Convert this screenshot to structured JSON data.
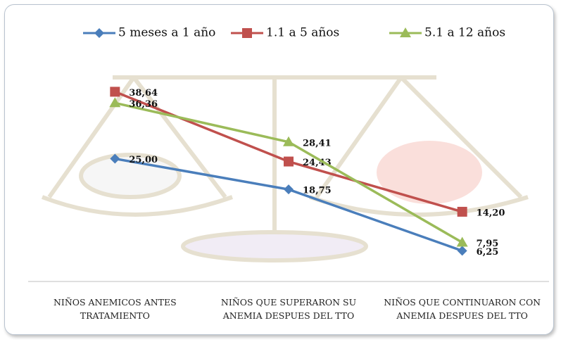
{
  "chart_data": {
    "type": "line",
    "categories": [
      "NIÑOS ANEMICOS ANTES TRATAMIENTO",
      "NIÑOS QUE SUPERARON SU ANEMIA DESPUES DEL TTO",
      "NIÑOS QUE CONTINUARON CON ANEMIA DESPUES DEL TTO"
    ],
    "series": [
      {
        "name": "5 meses a 1 año",
        "color": "#4a7ebb",
        "marker": "diamond",
        "values": [
          25.0,
          18.75,
          6.25
        ],
        "value_labels": [
          "25,00",
          "18,75",
          "6,25"
        ]
      },
      {
        "name": "1.1  a 5 años",
        "color": "#c0504d",
        "marker": "square",
        "values": [
          38.64,
          24.43,
          14.2
        ],
        "value_labels": [
          "38,64",
          "24,43",
          "14,20"
        ]
      },
      {
        "name": "5.1 a 12 años",
        "color": "#9bbb59",
        "marker": "triangle",
        "values": [
          36.36,
          28.41,
          7.95
        ],
        "value_labels": [
          "36,36",
          "28,41",
          "7,95"
        ]
      }
    ],
    "ylim": [
      0,
      45
    ],
    "legend": "top"
  }
}
